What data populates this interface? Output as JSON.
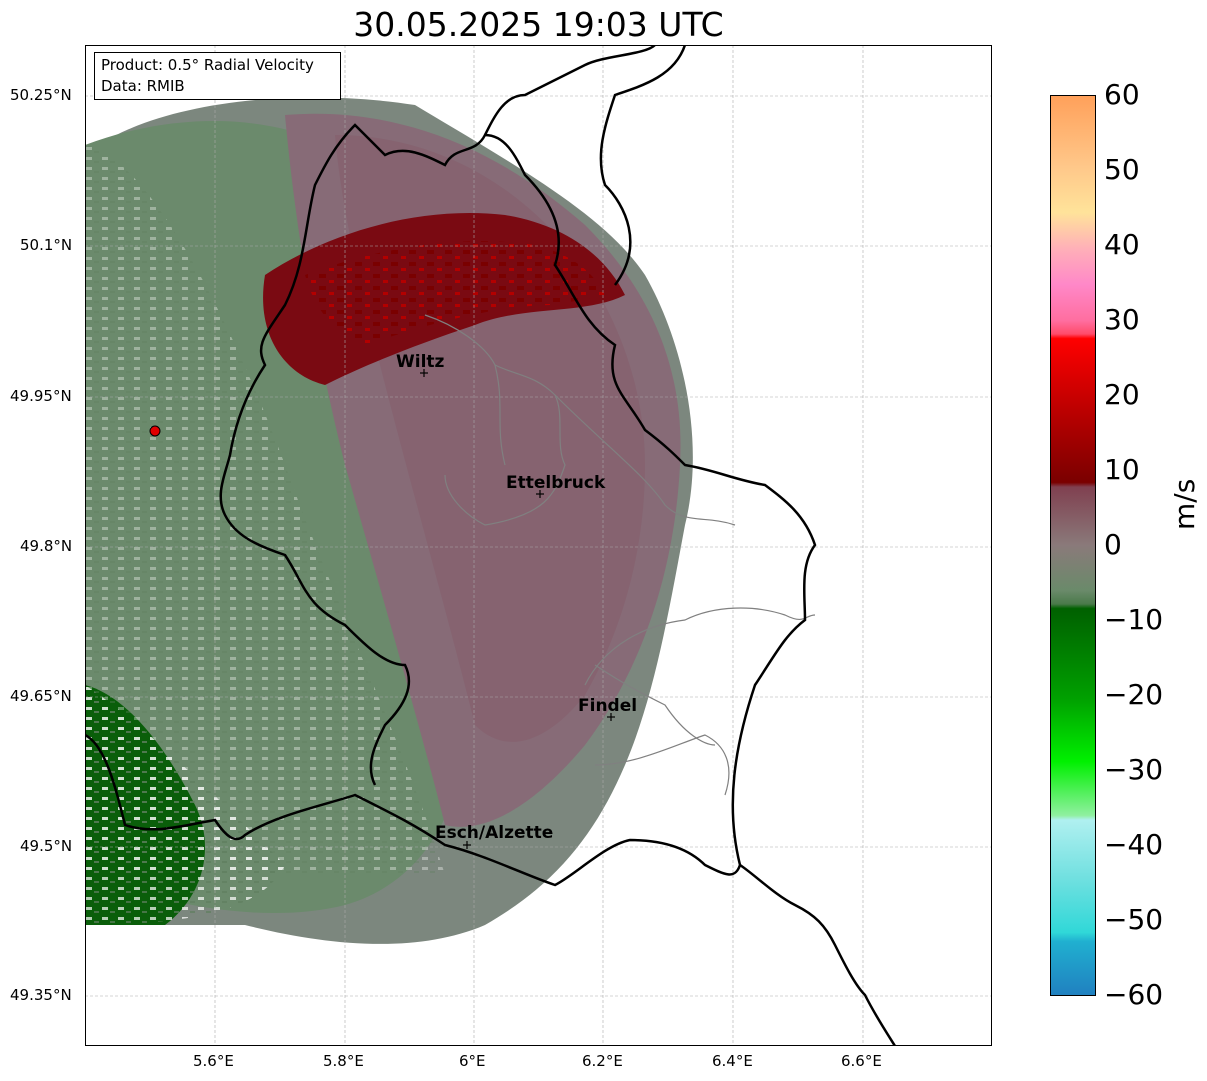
{
  "title": "30.05.2025 19:03 UTC",
  "info": {
    "product": "Product: 0.5° Radial Velocity",
    "source": "Data: RMIB"
  },
  "axes": {
    "y_ticks": [
      "50.25°N",
      "50.1°N",
      "49.95°N",
      "49.8°N",
      "49.65°N",
      "49.5°N",
      "49.35°N"
    ],
    "x_ticks": [
      "5.6°E",
      "5.8°E",
      "6°E",
      "6.2°E",
      "6.4°E",
      "6.6°E"
    ]
  },
  "cities": [
    {
      "name": "Wiltz"
    },
    {
      "name": "Ettelbruck"
    },
    {
      "name": "Findel"
    },
    {
      "name": "Esch/Alzette"
    }
  ],
  "colorbar": {
    "unit": "m/s",
    "ticks": [
      "60",
      "50",
      "40",
      "30",
      "20",
      "10",
      "0",
      "−10",
      "−20",
      "−30",
      "−40",
      "−50",
      "−60"
    ],
    "range": [
      -60,
      60
    ]
  },
  "colors": {
    "radar_site": "#e00000",
    "border": "#000000",
    "district_lines": "#808080"
  }
}
